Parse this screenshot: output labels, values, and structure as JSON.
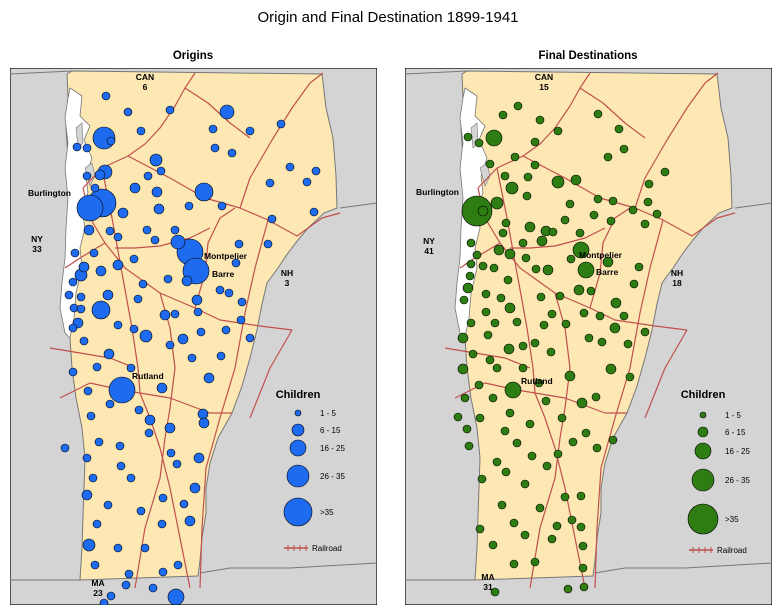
{
  "title": "Origin and Final Destination 1899-1941",
  "colors": {
    "land": "#fde8b4",
    "surround": "#d4d4d4",
    "lake": "#ffffff",
    "border": "#777777",
    "railroad": "#c0504d",
    "origin_dot": "#1e6bf0",
    "destination_dot": "#2e7d12"
  },
  "panels": [
    {
      "id": "origins",
      "subtitle": "Origins",
      "neighbors": [
        {
          "key": "can",
          "name": "CAN",
          "count": "6"
        },
        {
          "key": "ny",
          "name": "NY",
          "count": "33"
        },
        {
          "key": "nh",
          "name": "NH",
          "count": "3"
        },
        {
          "key": "ma",
          "name": "MA",
          "count": "23"
        }
      ],
      "cities": [
        "Burlington",
        "Montpelier",
        "Barre",
        "Rutland"
      ],
      "legend": {
        "title": "Children",
        "classes": [
          "1 - 5",
          "6 - 15",
          "16 - 25",
          "26 - 35",
          ">35"
        ],
        "railroad_label": "Railroad"
      }
    },
    {
      "id": "destinations",
      "subtitle": "Final Destinations",
      "neighbors": [
        {
          "key": "can",
          "name": "CAN",
          "count": "15"
        },
        {
          "key": "ny",
          "name": "NY",
          "count": "41"
        },
        {
          "key": "nh",
          "name": "NH",
          "count": "18"
        },
        {
          "key": "ma",
          "name": "MA",
          "count": "31"
        }
      ],
      "cities": [
        "Burlington",
        "Montpelier",
        "Barre",
        "Rutland"
      ],
      "legend": {
        "title": "Children",
        "classes": [
          "1 - 5",
          "6 - 15",
          "16 - 25",
          "26 - 35",
          ">35"
        ],
        "railroad_label": "Railroad"
      }
    }
  ]
}
